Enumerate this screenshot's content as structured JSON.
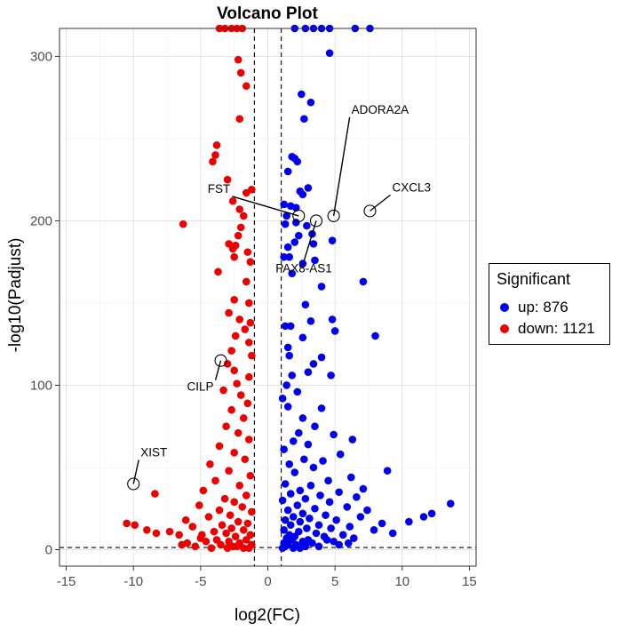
{
  "chart_data": {
    "type": "scatter",
    "title": "Volcano Plot",
    "xlabel": "log2(FC)",
    "ylabel": "-log10(Padjust)",
    "xlim": [
      -15.5,
      15.5
    ],
    "ylim": [
      -10,
      317
    ],
    "xticks": [
      "-15",
      "-10",
      "-5",
      "0",
      "5",
      "10",
      "15"
    ],
    "yticks": [
      "0",
      "100",
      "200",
      "300"
    ],
    "grid": true,
    "thresholds": {
      "x": [
        -1,
        1
      ],
      "y": 1.3
    },
    "legend": {
      "title": "Significant",
      "position": "right",
      "items": [
        {
          "label": "up: 876",
          "color": "#0000ee"
        },
        {
          "label": "down: 1121",
          "color": "#ee0000"
        }
      ]
    },
    "series": [
      {
        "name": "up: 876",
        "color": "#0000ee",
        "points": [
          [
            2.0,
            317
          ],
          [
            2.8,
            317
          ],
          [
            3.4,
            317
          ],
          [
            4.0,
            317
          ],
          [
            4.6,
            317
          ],
          [
            6.5,
            317
          ],
          [
            7.6,
            317
          ],
          [
            4.6,
            302
          ],
          [
            2.5,
            277
          ],
          [
            3.2,
            272
          ],
          [
            2.7,
            262
          ],
          [
            1.8,
            239
          ],
          [
            2.0,
            238
          ],
          [
            2.2,
            236
          ],
          [
            1.5,
            230
          ],
          [
            3.0,
            220
          ],
          [
            2.4,
            218
          ],
          [
            2.6,
            216
          ],
          [
            1.2,
            210
          ],
          [
            1.7,
            209
          ],
          [
            2.1,
            208
          ],
          [
            1.4,
            203
          ],
          [
            2.1,
            199
          ],
          [
            1.3,
            198
          ],
          [
            2.9,
            197
          ],
          [
            3.3,
            192
          ],
          [
            2.3,
            191
          ],
          [
            2.0,
            187
          ],
          [
            3.4,
            186
          ],
          [
            1.5,
            184
          ],
          [
            4.8,
            188
          ],
          [
            3.5,
            176
          ],
          [
            1.2,
            178
          ],
          [
            1.6,
            178
          ],
          [
            2.6,
            174
          ],
          [
            1.8,
            168
          ],
          [
            7.1,
            163
          ],
          [
            4.0,
            160
          ],
          [
            2.8,
            149
          ],
          [
            3.2,
            139
          ],
          [
            4.8,
            140
          ],
          [
            1.3,
            136
          ],
          [
            1.7,
            136
          ],
          [
            5.0,
            133
          ],
          [
            8.0,
            130
          ],
          [
            2.6,
            129
          ],
          [
            1.5,
            123
          ],
          [
            1.6,
            118
          ],
          [
            4.0,
            117
          ],
          [
            3.4,
            113
          ],
          [
            3.0,
            108
          ],
          [
            4.7,
            106
          ],
          [
            1.8,
            106
          ],
          [
            1.4,
            100
          ],
          [
            2.2,
            96
          ],
          [
            1.1,
            92
          ],
          [
            1.5,
            87
          ],
          [
            4.0,
            86
          ],
          [
            2.6,
            80
          ],
          [
            3.5,
            75
          ],
          [
            2.3,
            71
          ],
          [
            4.9,
            70
          ],
          [
            6.3,
            67
          ],
          [
            1.9,
            66
          ],
          [
            3.0,
            64
          ],
          [
            1.2,
            61
          ],
          [
            5.4,
            58
          ],
          [
            2.7,
            55
          ],
          [
            4.1,
            54
          ],
          [
            1.6,
            52
          ],
          [
            3.4,
            50
          ],
          [
            8.9,
            48
          ],
          [
            2.0,
            47
          ],
          [
            6.2,
            44
          ],
          [
            4.5,
            42
          ],
          [
            1.3,
            40
          ],
          [
            3.2,
            39
          ],
          [
            7.1,
            37
          ],
          [
            2.4,
            36
          ],
          [
            5.3,
            35
          ],
          [
            1.7,
            34
          ],
          [
            3.9,
            33
          ],
          [
            6.6,
            32
          ],
          [
            2.8,
            31
          ],
          [
            1.1,
            30
          ],
          [
            4.6,
            29
          ],
          [
            13.6,
            28
          ],
          [
            2.2,
            27
          ],
          [
            5.9,
            26
          ],
          [
            3.5,
            25
          ],
          [
            1.5,
            24
          ],
          [
            7.4,
            24
          ],
          [
            12.2,
            22
          ],
          [
            2.6,
            22
          ],
          [
            4.3,
            21
          ],
          [
            1.9,
            20
          ],
          [
            11.6,
            20
          ],
          [
            6.9,
            20
          ],
          [
            3.1,
            19
          ],
          [
            1.3,
            18
          ],
          [
            5.1,
            18
          ],
          [
            2.4,
            17
          ],
          [
            10.5,
            17
          ],
          [
            8.5,
            16
          ],
          [
            3.8,
            15
          ],
          [
            1.7,
            15
          ],
          [
            6.1,
            14
          ],
          [
            2.9,
            13
          ],
          [
            4.7,
            13
          ],
          [
            1.2,
            12
          ],
          [
            7.9,
            12
          ],
          [
            2.3,
            11
          ],
          [
            9.3,
            10
          ],
          [
            3.6,
            10
          ],
          [
            1.6,
            9
          ],
          [
            5.6,
            9
          ],
          [
            2.0,
            8
          ],
          [
            4.2,
            8
          ],
          [
            1.4,
            7
          ],
          [
            6.4,
            7
          ],
          [
            3.0,
            6
          ],
          [
            1.8,
            6
          ],
          [
            2.6,
            5
          ],
          [
            4.9,
            5
          ],
          [
            1.2,
            4
          ],
          [
            3.3,
            4
          ],
          [
            2.1,
            3
          ],
          [
            1.5,
            3
          ],
          [
            5.3,
            3
          ],
          [
            2.8,
            2
          ],
          [
            1.3,
            2
          ],
          [
            3.8,
            2
          ],
          [
            1.9,
            1
          ],
          [
            2.4,
            1
          ],
          [
            1.1,
            1
          ],
          [
            6.0,
            4
          ],
          [
            4.4,
            6
          ]
        ]
      },
      {
        "name": "down: 1121",
        "color": "#ee0000",
        "points": [
          [
            -3.6,
            317
          ],
          [
            -3.2,
            317
          ],
          [
            -2.7,
            317
          ],
          [
            -2.3,
            317
          ],
          [
            -1.9,
            317
          ],
          [
            -2.2,
            298
          ],
          [
            -2.0,
            290
          ],
          [
            -1.6,
            282
          ],
          [
            -2.1,
            262
          ],
          [
            -3.8,
            246
          ],
          [
            -3.9,
            240
          ],
          [
            -4.1,
            236
          ],
          [
            -3.0,
            225
          ],
          [
            -1.2,
            219
          ],
          [
            -1.6,
            217
          ],
          [
            -2.6,
            212
          ],
          [
            -2.1,
            207
          ],
          [
            -1.8,
            203
          ],
          [
            -6.3,
            198
          ],
          [
            -2.0,
            196
          ],
          [
            -2.2,
            191
          ],
          [
            -2.9,
            186
          ],
          [
            -2.4,
            185
          ],
          [
            -2.6,
            183
          ],
          [
            -1.5,
            181
          ],
          [
            -2.5,
            178
          ],
          [
            -1.3,
            175
          ],
          [
            -3.7,
            169
          ],
          [
            -1.6,
            163
          ],
          [
            -2.5,
            152
          ],
          [
            -1.4,
            150
          ],
          [
            -2.9,
            144
          ],
          [
            -2.1,
            140
          ],
          [
            -1.3,
            138
          ],
          [
            -1.7,
            134
          ],
          [
            -2.4,
            130
          ],
          [
            -1.4,
            126
          ],
          [
            -2.7,
            121
          ],
          [
            -1.2,
            118
          ],
          [
            -3.0,
            113
          ],
          [
            -2.5,
            109
          ],
          [
            -1.4,
            105
          ],
          [
            -2.3,
            101
          ],
          [
            -3.3,
            97
          ],
          [
            -2.0,
            94
          ],
          [
            -1.5,
            89
          ],
          [
            -2.7,
            85
          ],
          [
            -1.8,
            80
          ],
          [
            -3.1,
            75
          ],
          [
            -2.2,
            71
          ],
          [
            -1.4,
            67
          ],
          [
            -3.6,
            63
          ],
          [
            -2.5,
            59
          ],
          [
            -1.7,
            55
          ],
          [
            -4.3,
            52
          ],
          [
            -2.9,
            48
          ],
          [
            -1.3,
            45
          ],
          [
            -3.9,
            42
          ],
          [
            -2.1,
            39
          ],
          [
            -8.4,
            34
          ],
          [
            -4.8,
            36
          ],
          [
            -1.6,
            33
          ],
          [
            -3.2,
            31
          ],
          [
            -2.5,
            29
          ],
          [
            -5.1,
            27
          ],
          [
            -1.9,
            26
          ],
          [
            -3.6,
            24
          ],
          [
            -1.2,
            23
          ],
          [
            -2.8,
            21
          ],
          [
            -4.4,
            20
          ],
          [
            -6.1,
            18
          ],
          [
            -10.5,
            16
          ],
          [
            -9.9,
            15
          ],
          [
            -2.2,
            17
          ],
          [
            -1.5,
            16
          ],
          [
            -3.4,
            15
          ],
          [
            -5.6,
            14
          ],
          [
            -9.0,
            12
          ],
          [
            -8.3,
            10
          ],
          [
            -7.3,
            11
          ],
          [
            -2.7,
            13
          ],
          [
            -1.8,
            12
          ],
          [
            -4.0,
            11
          ],
          [
            -6.6,
            9
          ],
          [
            -3.1,
            10
          ],
          [
            -1.3,
            9
          ],
          [
            -2.4,
            8
          ],
          [
            -5.0,
            7
          ],
          [
            -3.8,
            6
          ],
          [
            -1.6,
            6
          ],
          [
            -2.9,
            5
          ],
          [
            -4.6,
            5
          ],
          [
            -6.0,
            4
          ],
          [
            -2.1,
            4
          ],
          [
            -1.2,
            3
          ],
          [
            -3.5,
            3
          ],
          [
            -5.4,
            2
          ],
          [
            -2.6,
            2
          ],
          [
            -1.8,
            1
          ],
          [
            -4.2,
            1
          ],
          [
            -3.0,
            1
          ],
          [
            -1.4,
            1
          ],
          [
            -2.3,
            2
          ],
          [
            -6.4,
            3
          ],
          [
            -4.9,
            9
          ]
        ]
      }
    ],
    "highlights": [
      {
        "label": "ADORA2A",
        "x": 4.9,
        "y": 203
      },
      {
        "label": "CXCL3",
        "x": 7.6,
        "y": 206
      },
      {
        "label": "FST",
        "x": 2.3,
        "y": 203
      },
      {
        "label": "PAX8-AS1",
        "x": 3.6,
        "y": 200
      },
      {
        "label": "CILP",
        "x": -3.5,
        "y": 115
      },
      {
        "label": "XIST",
        "x": -10.0,
        "y": 40
      }
    ]
  }
}
